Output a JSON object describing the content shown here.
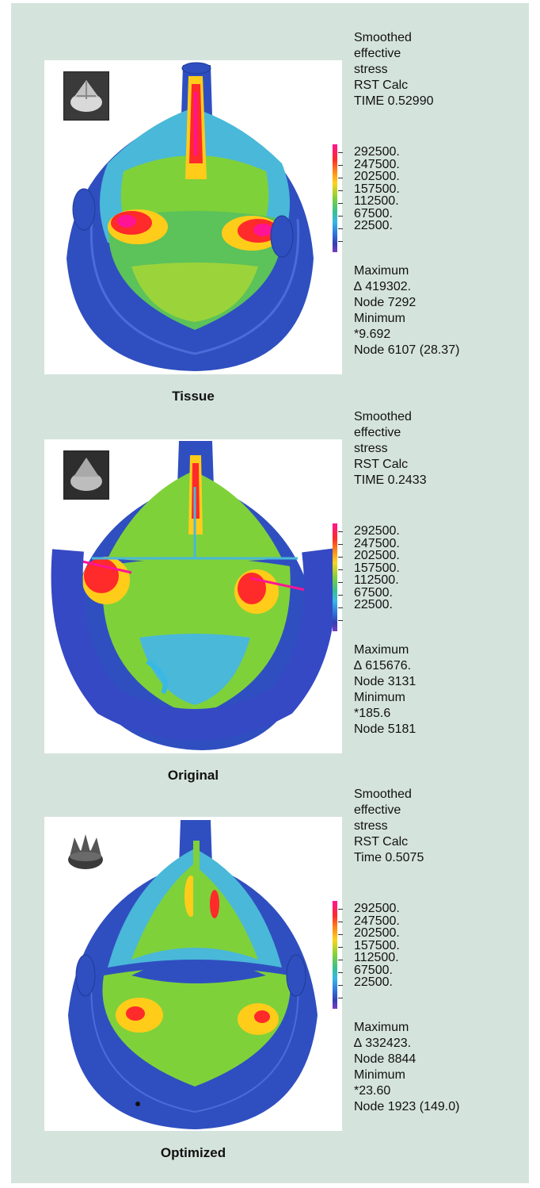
{
  "panels": [
    {
      "caption": "Tissue",
      "header": [
        "Smoothed",
        "effective",
        "stress",
        "RST Calc",
        "TIME 0.52990"
      ],
      "legend_values": [
        "292500.",
        "247500.",
        "202500.",
        "157500.",
        "112500.",
        "67500.",
        "22500."
      ],
      "footer": [
        "Maximum",
        "∆ 419302.",
        "Node 7292",
        "Minimum",
        "*9.692",
        "Node 6107 (28.37)"
      ]
    },
    {
      "caption": "Original",
      "header": [
        "Smoothed",
        "effective",
        "stress",
        "RST Calc",
        "TIME 0.2433"
      ],
      "legend_values": [
        "292500.",
        "247500.",
        "202500.",
        "157500.",
        "112500.",
        "67500.",
        "22500."
      ],
      "footer": [
        "Maximum",
        "∆ 615676.",
        "Node 3131",
        "Minimum",
        "*185.6",
        "Node 5181"
      ]
    },
    {
      "caption": "Optimized",
      "header": [
        "Smoothed",
        "effective",
        "stress",
        "RST Calc",
        "Time 0.5075"
      ],
      "legend_values": [
        "292500.",
        "247500.",
        "202500.",
        "157500.",
        "112500.",
        "67500.",
        "22500."
      ],
      "footer": [
        "Maximum",
        "∆ 332423.",
        "Node 8844",
        "Minimum",
        "*23.60",
        "Node 1923 (149.0)"
      ]
    }
  ],
  "colors": {
    "background": "#d5e3dd",
    "low": "#3440b0",
    "mid": "#7fd13a",
    "high": "#ff2a2a",
    "peak": "#ff1493"
  }
}
